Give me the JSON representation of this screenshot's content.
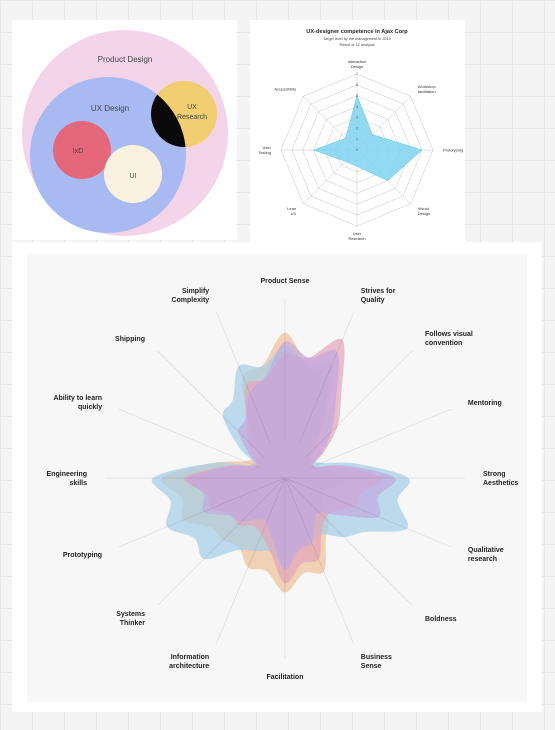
{
  "venn": {
    "outer_label": "Product Design",
    "ux_label": "UX Design",
    "research_label_1": "UX",
    "research_label_2": "Research",
    "ixd_label": "IxD",
    "ui_label": "UI"
  },
  "radar_small": {
    "title": "UX-designer competence in Ajax Corp",
    "subtitle_1": "Target level by the management in 2019",
    "subtitle_2": "Result of 12 analysis",
    "axes": [
      {
        "line1": "Interaction",
        "line2": "Design"
      },
      {
        "line1": "Workshop",
        "line2": "facilitation"
      },
      {
        "line1": "Prototyping",
        "line2": ""
      },
      {
        "line1": "Visual",
        "line2": "Design"
      },
      {
        "line1": "User",
        "line2": "Research"
      },
      {
        "line1": "Lean",
        "line2": "UX"
      },
      {
        "line1": "User",
        "line2": "Testing"
      },
      {
        "line1": "Accessibility",
        "line2": ""
      }
    ],
    "ticks": [
      "0",
      "1",
      "2",
      "3",
      "4",
      "5",
      "6",
      "7"
    ],
    "legend_current": "Current level",
    "legend_target": "Target level",
    "colors": {
      "current": "#7fd3ee",
      "target": "#999999"
    }
  },
  "chart_data": [
    {
      "type": "radar",
      "title": "UX-designer competence in Ajax Corp",
      "subtitle": "Target level by the management in 2019",
      "axes": [
        "Interaction Design",
        "Workshop facilitation",
        "Prototyping",
        "Visual Design",
        "User Research",
        "Lean UX",
        "User Testing",
        "Accessibility"
      ],
      "range": [
        0,
        7
      ],
      "series": [
        {
          "name": "Current level",
          "values": [
            5,
            2,
            6,
            4,
            1.5,
            1.5,
            4,
            1.5
          ]
        },
        {
          "name": "Target level",
          "values": []
        }
      ],
      "legend": "bottom"
    },
    {
      "type": "radar",
      "axes": [
        "Product Sense",
        "Strives for Quality",
        "Follows visual convention",
        "Mentoring",
        "Strong Aesthetics",
        "Qualitative research",
        "Boldness",
        "Business Sense",
        "Facilitation",
        "Information architecture",
        "Systems Thinker",
        "Prototyping",
        "Engineering skills",
        "Ability to learn quickly",
        "Shipping",
        "Simplify Complexity"
      ],
      "series": [
        {
          "color": "#f5c79a",
          "values": [
            0.66,
            0.5,
            0.2,
            0.13,
            0.3,
            0.18,
            0.28,
            0.46,
            0.52,
            0.44,
            0.4,
            0.5,
            0.56,
            0.2,
            0.16,
            0.5
          ]
        },
        {
          "color": "#a9d4ef",
          "values": [
            0.6,
            0.56,
            0.16,
            0.18,
            0.56,
            0.6,
            0.38,
            0.3,
            0.4,
            0.36,
            0.52,
            0.58,
            0.6,
            0.16,
            0.4,
            0.55
          ]
        },
        {
          "color": "#eba9be",
          "values": [
            0.56,
            0.68,
            0.34,
            0.14,
            0.44,
            0.34,
            0.26,
            0.4,
            0.48,
            0.28,
            0.3,
            0.36,
            0.46,
            0.15,
            0.24,
            0.46
          ]
        },
        {
          "color": "#c9aee6",
          "values": [
            0.62,
            0.62,
            0.3,
            0.14,
            0.5,
            0.46,
            0.22,
            0.32,
            0.42,
            0.22,
            0.28,
            0.4,
            0.44,
            0.14,
            0.3,
            0.42
          ]
        }
      ]
    }
  ],
  "big_radar": {
    "labels": [
      {
        "l1": "Product Sense",
        "l2": ""
      },
      {
        "l1": "Strives for",
        "l2": "Quality"
      },
      {
        "l1": "Follows visual",
        "l2": "convention"
      },
      {
        "l1": "Mentoring",
        "l2": ""
      },
      {
        "l1": "Strong",
        "l2": "Aesthetics"
      },
      {
        "l1": "Qualitative",
        "l2": "research"
      },
      {
        "l1": "Boldness",
        "l2": ""
      },
      {
        "l1": "Business",
        "l2": "Sense"
      },
      {
        "l1": "Facilitation",
        "l2": ""
      },
      {
        "l1": "Information",
        "l2": "architecture"
      },
      {
        "l1": "Systems",
        "l2": "Thinker"
      },
      {
        "l1": "Prototyping",
        "l2": ""
      },
      {
        "l1": "Engineering",
        "l2": "skills"
      },
      {
        "l1": "Ability to learn",
        "l2": "quickly"
      },
      {
        "l1": "Shipping",
        "l2": ""
      },
      {
        "l1": "Simplify",
        "l2": "Complexity"
      }
    ]
  }
}
